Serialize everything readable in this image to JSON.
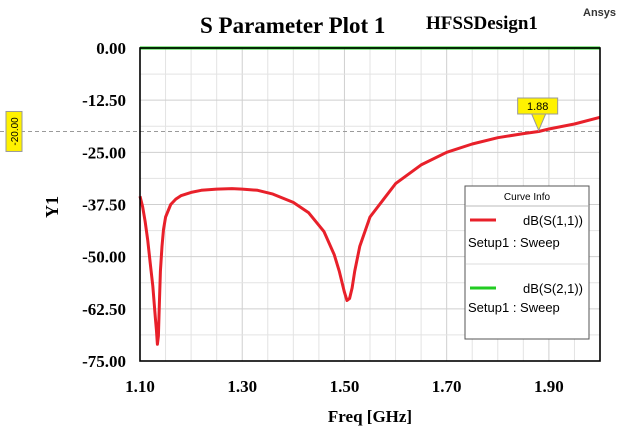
{
  "header": {
    "title": "S Parameter Plot 1",
    "design_name": "HFSSDesign1",
    "brand": "Ansys"
  },
  "chart_data": {
    "type": "line",
    "xlabel": "Freq [GHz]",
    "ylabel": "Y1",
    "xlim": [
      1.1,
      2.0
    ],
    "ylim": [
      -75.0,
      0.0
    ],
    "x_ticks": [
      "1.10",
      "1.30",
      "1.50",
      "1.70",
      "1.90"
    ],
    "y_ticks": [
      "0.00",
      "-12.50",
      "-25.00",
      "-37.50",
      "-50.00",
      "-62.50",
      "-75.00"
    ],
    "grid": true,
    "legend": {
      "title": "Curve Info",
      "placement": "right"
    },
    "series": [
      {
        "name": "dB(S(1,1))",
        "setup": "Setup1 : Sweep",
        "color": "#e8202a",
        "x": [
          1.1,
          1.105,
          1.11,
          1.115,
          1.12,
          1.125,
          1.128,
          1.13,
          1.132,
          1.134,
          1.136,
          1.138,
          1.14,
          1.143,
          1.146,
          1.15,
          1.16,
          1.17,
          1.18,
          1.2,
          1.22,
          1.25,
          1.28,
          1.3,
          1.33,
          1.36,
          1.4,
          1.43,
          1.46,
          1.48,
          1.49,
          1.5,
          1.505,
          1.51,
          1.515,
          1.52,
          1.53,
          1.55,
          1.6,
          1.65,
          1.7,
          1.75,
          1.8,
          1.85,
          1.88,
          1.9,
          1.95,
          2.0
        ],
        "y": [
          -35.5,
          -38.0,
          -41.5,
          -46.0,
          -51.5,
          -57.0,
          -61.5,
          -64.5,
          -67.5,
          -71.0,
          -69.0,
          -61.0,
          -53.5,
          -47.5,
          -43.5,
          -40.5,
          -37.5,
          -36.2,
          -35.4,
          -34.6,
          -34.1,
          -33.8,
          -33.7,
          -33.8,
          -34.1,
          -35.0,
          -37.0,
          -39.5,
          -44.0,
          -49.5,
          -53.5,
          -58.5,
          -60.5,
          -60.0,
          -57.5,
          -53.5,
          -47.5,
          -40.5,
          -32.5,
          -28.0,
          -25.0,
          -23.0,
          -21.5,
          -20.5,
          -20.0,
          -19.4,
          -18.2,
          -16.6
        ]
      },
      {
        "name": "dB(S(2,1))",
        "setup": "Setup1 : Sweep",
        "color": "#22cc22",
        "x": [
          1.1,
          2.0
        ],
        "y": [
          0.0,
          0.0
        ]
      }
    ],
    "annotations": {
      "y_marker": {
        "value": -20.0,
        "label": "-20.00",
        "line_color": "#9a9a9a",
        "box_color": "#fff200"
      },
      "x_marker": {
        "value": 1.88,
        "label": "1.88",
        "box_color": "#fff200"
      }
    }
  }
}
